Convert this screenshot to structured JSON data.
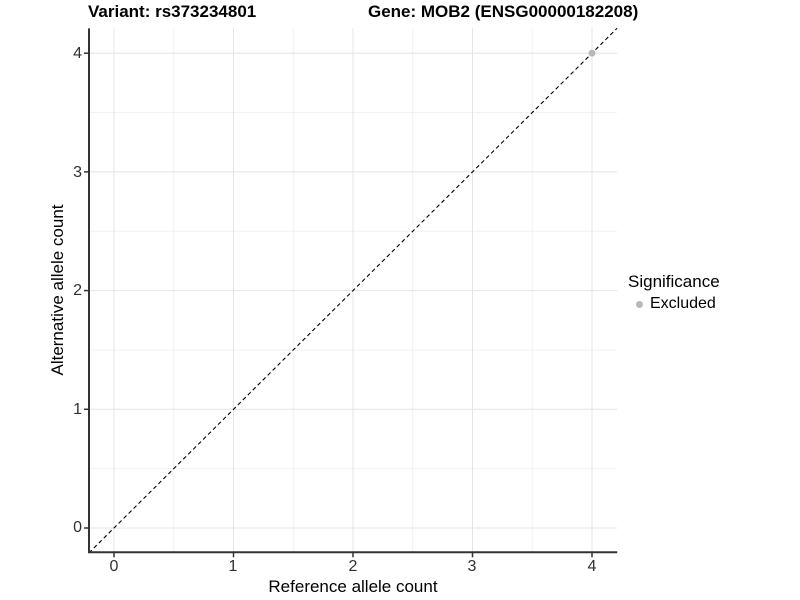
{
  "header": {
    "title_left": "Variant: rs373234801",
    "title_right": "Gene: MOB2 (ENSG00000182208)"
  },
  "chart_data": {
    "type": "scatter",
    "title_left": "Variant: rs373234801",
    "title_right": "Gene: MOB2 (ENSG00000182208)",
    "xlabel": "Reference allele count",
    "ylabel": "Alternative allele count",
    "xlim": [
      -0.21,
      4.21
    ],
    "ylim": [
      -0.21,
      4.21
    ],
    "x_ticks": [
      0,
      1,
      2,
      3,
      4
    ],
    "y_ticks": [
      0,
      1,
      2,
      3,
      4
    ],
    "x_tick_labels": [
      "0",
      "1",
      "2",
      "3",
      "4"
    ],
    "y_tick_labels": [
      "0",
      "1",
      "2",
      "3",
      "4"
    ],
    "grid": "major-and-minor",
    "legend_position": "right",
    "series": [
      {
        "name": "Excluded",
        "marker": "dot",
        "color": "#b8b8b8",
        "points": [
          {
            "x": 4,
            "y": 4
          }
        ]
      }
    ],
    "reference_line": {
      "type": "identity",
      "label": "y = x",
      "style": "dashed",
      "color": "#000000"
    }
  },
  "colors": {
    "background": "#ffffff",
    "grid_major": "#e4e4e4",
    "grid_minor": "#f2f2f2",
    "axis_line": "#333333",
    "excluded_point": "#b8b8b8"
  },
  "legend": {
    "title": "Significance",
    "items": [
      {
        "label": "Excluded",
        "color": "#b8b8b8",
        "marker": "dot"
      }
    ]
  }
}
